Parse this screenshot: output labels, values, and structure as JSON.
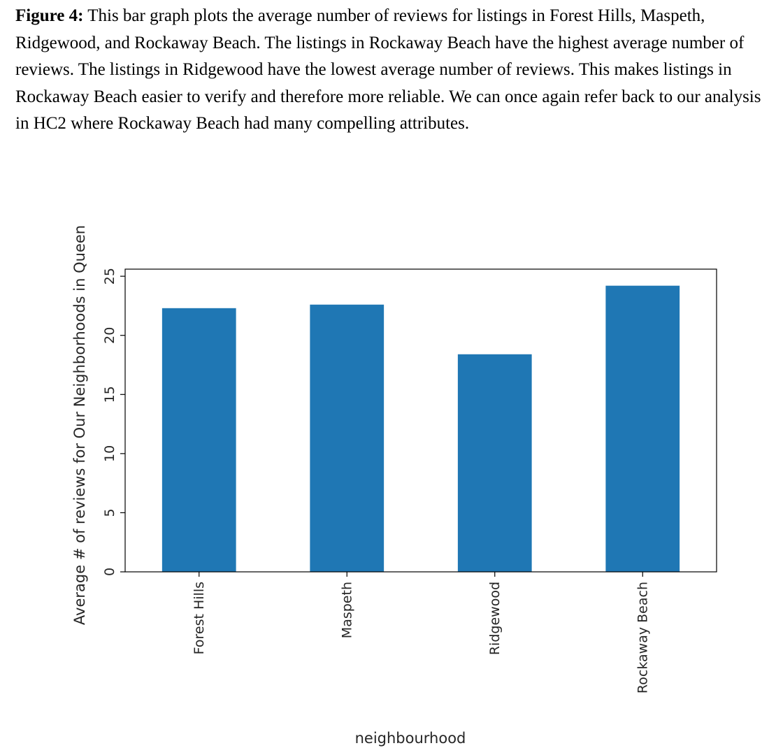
{
  "caption": {
    "label": "Figure 4:",
    "text": " This bar graph plots the average number of reviews for listings in Forest Hills, Maspeth, Ridgewood, and Rockaway Beach. The listings in Rockaway Beach have the highest average number of reviews. The listings in Ridgewood have the lowest average number of reviews. This makes listings in Rockaway Beach easier to verify and therefore more reliable. We can once again refer back to our analysis in HC2 where Rockaway Beach had many compelling attributes."
  },
  "chart_data": {
    "type": "bar",
    "categories": [
      "Forest Hills",
      "Maspeth",
      "Ridgewood",
      "Rockaway Beach"
    ],
    "values": [
      22.3,
      22.6,
      18.4,
      24.2
    ],
    "xlabel": "neighbourhood",
    "ylabel": "Average # of reviews for Our Neighborhoods in Queen",
    "ylim": [
      0,
      25.6
    ],
    "yticks": [
      0,
      5,
      10,
      15,
      20,
      25
    ],
    "grid": false,
    "bar_color": "#1f77b4"
  }
}
